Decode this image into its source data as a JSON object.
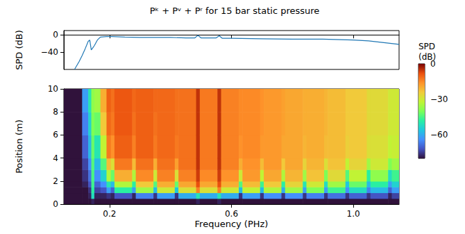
{
  "chart_data": [
    {
      "type": "line",
      "title": "Pᵏ + Pᵛ + Pʳ for 15 bar static pressure",
      "y_label": "SPD (dB)",
      "x": [
        0.085,
        0.1,
        0.11,
        0.12,
        0.13,
        0.135,
        0.14,
        0.145,
        0.15,
        0.16,
        0.17,
        0.19,
        0.21,
        0.25,
        0.3,
        0.35,
        0.4,
        0.45,
        0.48,
        0.49,
        0.5,
        0.55,
        0.56,
        0.57,
        0.6,
        0.7,
        0.8,
        0.9,
        1.0,
        1.05,
        1.1,
        1.15
      ],
      "values": [
        -80,
        -62,
        -48,
        -32,
        -15,
        -12,
        -35,
        -30,
        -25,
        -12,
        -5,
        -4,
        -4,
        -5,
        -6,
        -6,
        -6,
        -7,
        -7,
        -1,
        -7,
        -7,
        -2,
        -8,
        -8,
        -9,
        -10,
        -10,
        -12,
        -14,
        -18,
        -22
      ],
      "color": "#1f77b4",
      "xlim": [
        0.05,
        1.15
      ],
      "xticks": [
        0.2,
        0.6,
        {
          "value": 1.0,
          "label": "1.0"
        }
      ],
      "ylim": [
        -80,
        10
      ],
      "yticks": [
        {
          "value": 0,
          "label": "0"
        },
        {
          "value": -40,
          "label": "−40"
        }
      ],
      "tick_labels": "y"
    },
    {
      "type": "heatmap",
      "x_label": "Frequency (PHz)",
      "y_label": "Position (m)",
      "xlim": [
        0.05,
        1.15
      ],
      "xticks": [
        0.2,
        0.6,
        {
          "value": 1.0,
          "label": "1.0"
        }
      ],
      "ylim": [
        0,
        10
      ],
      "yticks": [
        0,
        2,
        4,
        6,
        8,
        10
      ],
      "x_edges": [
        0.05,
        0.11,
        0.13,
        0.14,
        0.15,
        0.17,
        0.19,
        0.204,
        0.216,
        0.274,
        0.286,
        0.344,
        0.356,
        0.414,
        0.426,
        0.484,
        0.496,
        0.554,
        0.566,
        0.624,
        0.636,
        0.694,
        0.706,
        0.764,
        0.776,
        0.834,
        0.846,
        0.904,
        0.916,
        0.974,
        0.986,
        1.044,
        1.056,
        1.114,
        1.126,
        1.15
      ],
      "y_edges": [
        0,
        0.5,
        1,
        1.5,
        2,
        3,
        4,
        6,
        8,
        10
      ],
      "cells": [
        [
          -80,
          -80,
          -80,
          -80,
          -80,
          -80,
          -80,
          -80,
          -80
        ],
        [
          -80,
          -80,
          -80,
          -78,
          -76,
          -74,
          -70,
          -66,
          -62
        ],
        [
          -80,
          -78,
          -76,
          -72,
          -68,
          -64,
          -58,
          -54,
          -50
        ],
        [
          -78,
          -52,
          -48,
          -46,
          -45,
          -44,
          -42,
          -40,
          -38
        ],
        [
          -80,
          -78,
          -74,
          -70,
          -64,
          -58,
          -50,
          -42,
          -36
        ],
        [
          -80,
          -78,
          -72,
          -64,
          -54,
          -44,
          -32,
          -24,
          -20
        ],
        [
          -80,
          -76,
          -62,
          -50,
          -34,
          -22,
          -13,
          -11,
          -10
        ],
        [
          -80,
          -78,
          -70,
          -58,
          -42,
          -28,
          -16,
          -13,
          -12
        ],
        [
          -80,
          -72,
          -48,
          -34,
          -20,
          -13,
          -10,
          -9,
          -9
        ],
        [
          -80,
          -78,
          -62,
          -48,
          -34,
          -22,
          -14,
          -12,
          -11
        ],
        [
          -80,
          -66,
          -36,
          -24,
          -15,
          -12,
          -10,
          -10,
          -10
        ],
        [
          -80,
          -76,
          -58,
          -44,
          -30,
          -20,
          -13,
          -12,
          -11
        ],
        [
          -80,
          -62,
          -30,
          -20,
          -14,
          -12,
          -11,
          -11,
          -11
        ],
        [
          -80,
          -76,
          -56,
          -42,
          -28,
          -18,
          -13,
          -12,
          -12
        ],
        [
          -80,
          -60,
          -28,
          -19,
          -14,
          -12,
          -12,
          -12,
          -12
        ],
        [
          -78,
          -50,
          -14,
          -8,
          -6,
          -5,
          -5,
          -5,
          -5
        ],
        [
          -80,
          -60,
          -28,
          -19,
          -15,
          -13,
          -13,
          -13,
          -13
        ],
        [
          -78,
          -50,
          -14,
          -8,
          -6,
          -5,
          -5,
          -5,
          -5
        ],
        [
          -80,
          -60,
          -30,
          -20,
          -16,
          -14,
          -14,
          -14,
          -14
        ],
        [
          -80,
          -76,
          -58,
          -44,
          -30,
          -20,
          -16,
          -15,
          -15
        ],
        [
          -80,
          -62,
          -32,
          -22,
          -17,
          -16,
          -15,
          -15,
          -15
        ],
        [
          -80,
          -76,
          -58,
          -46,
          -32,
          -22,
          -17,
          -16,
          -16
        ],
        [
          -80,
          -64,
          -34,
          -24,
          -19,
          -17,
          -17,
          -17,
          -17
        ],
        [
          -80,
          -76,
          -60,
          -48,
          -34,
          -24,
          -19,
          -18,
          -18
        ],
        [
          -80,
          -64,
          -36,
          -26,
          -21,
          -19,
          -19,
          -19,
          -19
        ],
        [
          -80,
          -76,
          -62,
          -50,
          -36,
          -26,
          -21,
          -20,
          -20
        ],
        [
          -80,
          -66,
          -40,
          -30,
          -23,
          -21,
          -20,
          -20,
          -20
        ],
        [
          -80,
          -76,
          -62,
          -52,
          -40,
          -28,
          -22,
          -21,
          -21
        ],
        [
          -80,
          -68,
          -46,
          -36,
          -27,
          -23,
          -22,
          -22,
          -22
        ],
        [
          -80,
          -76,
          -64,
          -56,
          -44,
          -32,
          -25,
          -24,
          -24
        ],
        [
          -80,
          -70,
          -52,
          -42,
          -32,
          -26,
          -24,
          -24,
          -24
        ],
        [
          -80,
          -76,
          -66,
          -58,
          -48,
          -36,
          -28,
          -27,
          -27
        ],
        [
          -80,
          -72,
          -58,
          -48,
          -38,
          -30,
          -28,
          -27,
          -27
        ],
        [
          -80,
          -78,
          -70,
          -62,
          -52,
          -40,
          -32,
          -30,
          -30
        ],
        [
          -80,
          -74,
          -62,
          -54,
          -46,
          -36,
          -31,
          -30,
          -30
        ]
      ],
      "colorbar": {
        "label": "SPD (dB)",
        "lim": [
          -80,
          0
        ],
        "ticks": [
          {
            "value": 0,
            "label": "0"
          },
          {
            "value": -30,
            "label": "−30"
          },
          {
            "value": -60,
            "label": "−60"
          }
        ]
      }
    }
  ]
}
